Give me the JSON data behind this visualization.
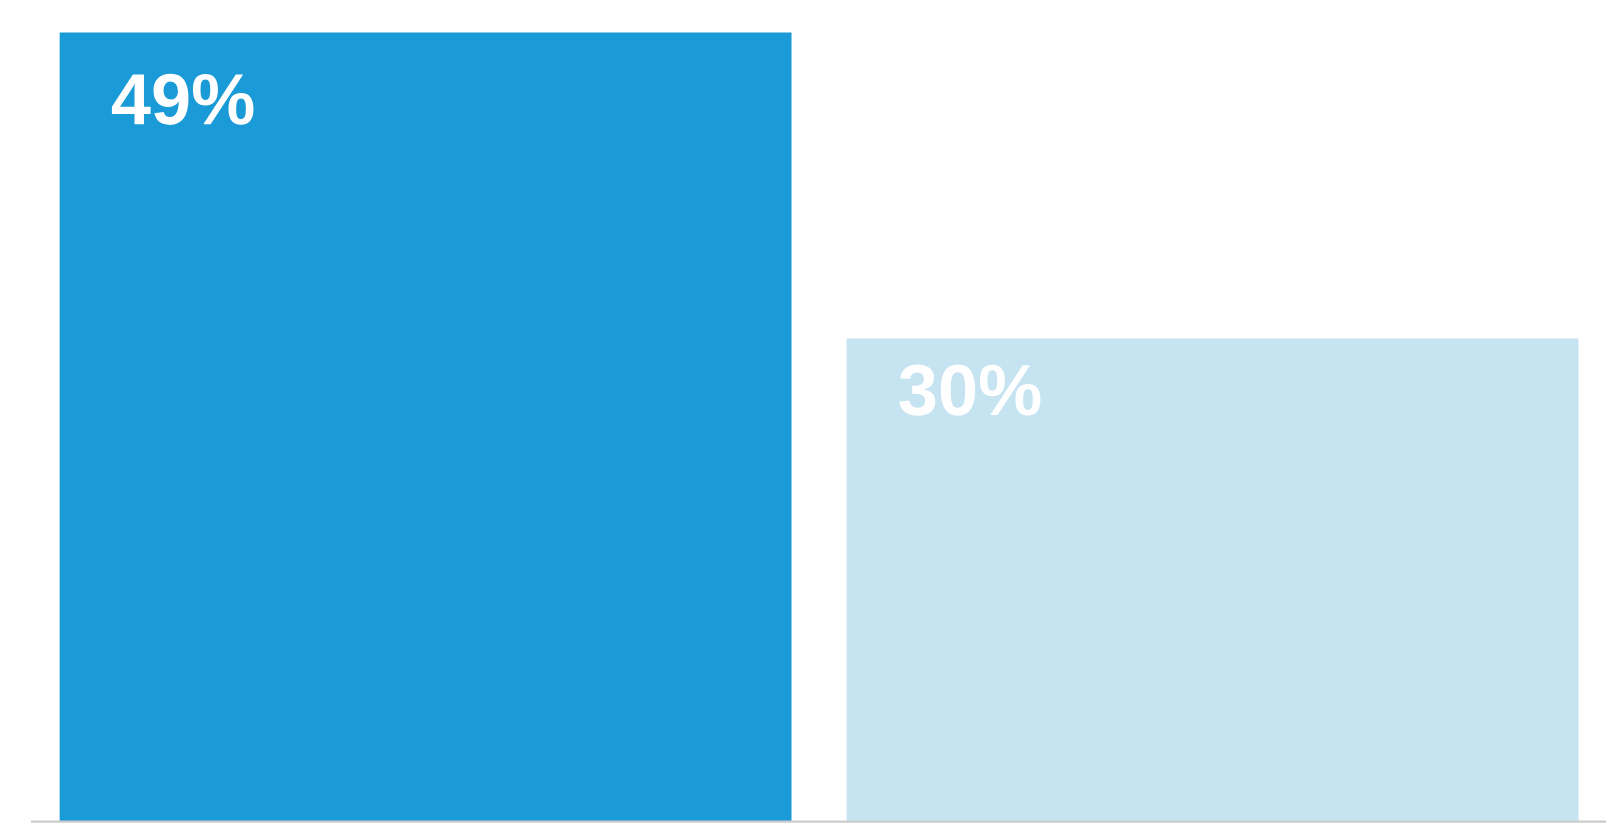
{
  "chart_data": {
    "type": "bar",
    "categories": [
      null,
      null
    ],
    "values": [
      49,
      30
    ],
    "colors": [
      "#1a9ad6",
      "#c6e3f2"
    ],
    "value_labels": [
      "49%",
      "30%"
    ]
  }
}
